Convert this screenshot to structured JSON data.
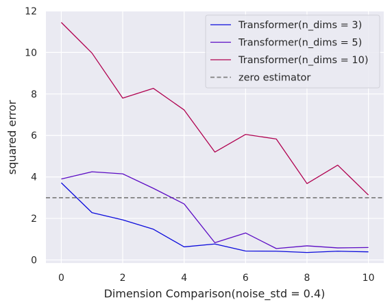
{
  "chart_data": {
    "type": "line",
    "xlabel": "Dimension Comparison(noise_std = 0.4)",
    "ylabel": "squared error",
    "xlim": [
      -0.5,
      10.5
    ],
    "ylim": [
      -0.15,
      12
    ],
    "xticks": [
      0,
      2,
      4,
      6,
      8,
      10
    ],
    "yticks": [
      0,
      2,
      4,
      6,
      8,
      10,
      12
    ],
    "grid": true,
    "legend_position": "top-right",
    "x": [
      0,
      1,
      2,
      3,
      4,
      5,
      6,
      7,
      8,
      9,
      10
    ],
    "series": [
      {
        "name": "Transformer(n_dims = 3)",
        "color": "#0a0adc",
        "style": "solid",
        "values": [
          3.72,
          2.28,
          1.93,
          1.48,
          0.63,
          0.77,
          0.43,
          0.42,
          0.36,
          0.42,
          0.39
        ]
      },
      {
        "name": "Transformer(n_dims = 5)",
        "color": "#5b0bc4",
        "style": "solid",
        "values": [
          3.9,
          4.25,
          4.15,
          3.45,
          2.7,
          0.83,
          1.3,
          0.55,
          0.68,
          0.58,
          0.6
        ]
      },
      {
        "name": "Transformer(n_dims = 10)",
        "color": "#b0004f",
        "style": "solid",
        "values": [
          11.45,
          9.97,
          7.8,
          8.27,
          7.23,
          5.2,
          6.05,
          5.83,
          3.68,
          4.57,
          3.13
        ]
      }
    ],
    "reference_lines": [
      {
        "name": "zero estimator",
        "color": "#808080",
        "style": "dashed",
        "y": 3.0
      }
    ]
  }
}
